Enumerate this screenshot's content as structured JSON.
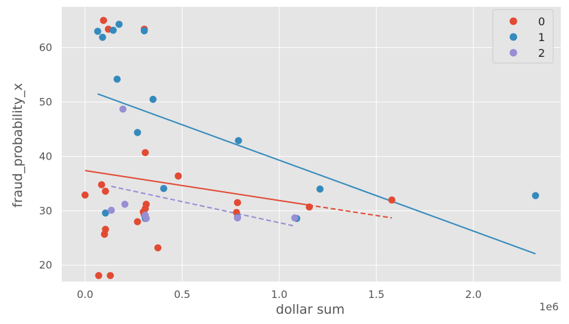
{
  "chart_data": {
    "type": "scatter",
    "xlabel": "dollar sum",
    "ylabel": "fraud_probability_x",
    "x_offset_label": "1e6",
    "xlim": [
      -0.12,
      2.45
    ],
    "ylim": [
      17.0,
      67.5
    ],
    "x_ticks": [
      0.0,
      0.5,
      1.0,
      1.5,
      2.0
    ],
    "x_tick_labels": [
      "0.0",
      "0.5",
      "1.0",
      "1.5",
      "2.0"
    ],
    "y_ticks": [
      20,
      30,
      40,
      50,
      60
    ],
    "y_tick_labels": [
      "20",
      "30",
      "40",
      "50",
      "60"
    ],
    "grid": true,
    "legend_placement": "top-right",
    "background": "#e5e5e5",
    "series": [
      {
        "name": "0",
        "color": "#e24a33",
        "points": [
          [
            0.095,
            65.0
          ],
          [
            0.12,
            63.4
          ],
          [
            0.305,
            63.4
          ],
          [
            0.31,
            40.7
          ],
          [
            0.48,
            36.4
          ],
          [
            0.0,
            32.9
          ],
          [
            0.085,
            34.8
          ],
          [
            0.105,
            33.6
          ],
          [
            0.315,
            31.2
          ],
          [
            0.31,
            30.4
          ],
          [
            0.3,
            29.8
          ],
          [
            0.305,
            29.3
          ],
          [
            0.27,
            28.0
          ],
          [
            0.105,
            26.6
          ],
          [
            0.1,
            25.7
          ],
          [
            0.375,
            23.2
          ],
          [
            0.07,
            18.1
          ],
          [
            0.13,
            18.1
          ],
          [
            0.785,
            31.5
          ],
          [
            0.78,
            29.7
          ],
          [
            1.155,
            30.7
          ],
          [
            1.58,
            32.0
          ]
        ],
        "trend": {
          "style": "dashed-after-data",
          "x": [
            0.0,
            1.58
          ],
          "y": [
            37.4,
            28.7
          ],
          "solid_until": 1.15
        }
      },
      {
        "name": "1",
        "color": "#348abd",
        "points": [
          [
            0.065,
            63.0
          ],
          [
            0.145,
            63.2
          ],
          [
            0.175,
            64.3
          ],
          [
            0.09,
            61.9
          ],
          [
            0.305,
            63.1
          ],
          [
            0.165,
            54.2
          ],
          [
            0.35,
            50.5
          ],
          [
            0.27,
            44.4
          ],
          [
            0.79,
            42.9
          ],
          [
            0.405,
            34.1
          ],
          [
            1.21,
            34.0
          ],
          [
            0.105,
            29.6
          ],
          [
            0.31,
            28.6
          ],
          [
            1.09,
            28.6
          ],
          [
            0.785,
            28.8
          ],
          [
            2.32,
            32.8
          ]
        ],
        "trend": {
          "style": "solid",
          "x": [
            0.065,
            2.32
          ],
          "y": [
            51.5,
            22.1
          ]
        }
      },
      {
        "name": "2",
        "color": "#988ed5",
        "points": [
          [
            0.195,
            48.7
          ],
          [
            0.205,
            31.2
          ],
          [
            0.135,
            30.1
          ],
          [
            0.31,
            29.2
          ],
          [
            0.315,
            28.6
          ],
          [
            0.785,
            28.7
          ],
          [
            1.08,
            28.7
          ]
        ],
        "trend": {
          "style": "dashed",
          "x": [
            0.135,
            1.08
          ],
          "y": [
            34.5,
            27.2
          ]
        }
      }
    ]
  }
}
